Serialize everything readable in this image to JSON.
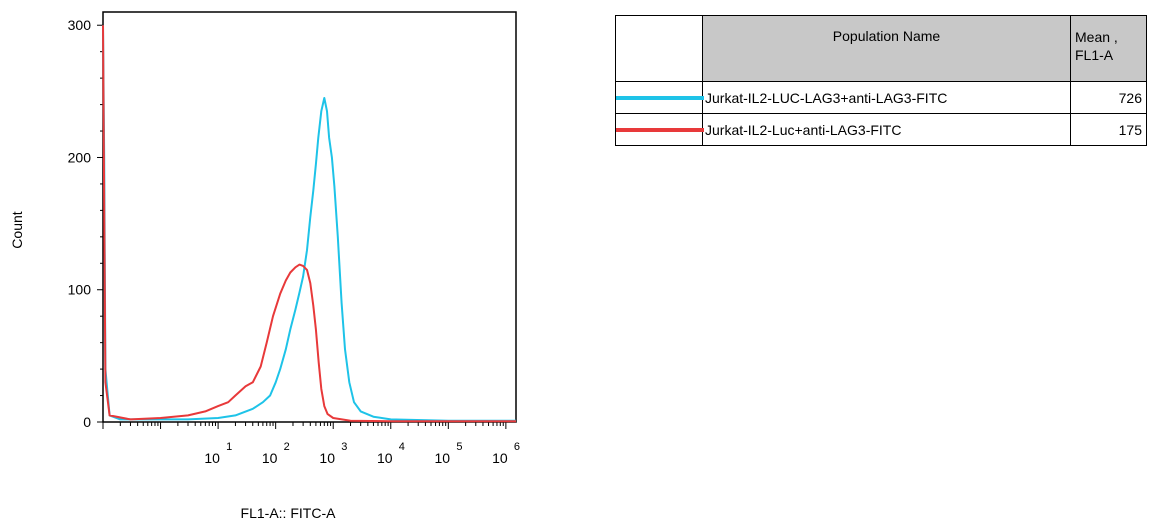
{
  "chart_data": {
    "type": "line",
    "title": "",
    "xlabel": "FL1-A:: FITC-A",
    "ylabel": "Count",
    "xscale": "log",
    "xlim": [
      0.1,
      1500000
    ],
    "ylim": [
      0,
      310
    ],
    "yticks": [
      0,
      100,
      200,
      300
    ],
    "xtick_labels": [
      {
        "base": "10",
        "exp": "1",
        "value": 10
      },
      {
        "base": "10",
        "exp": "2",
        "value": 100
      },
      {
        "base": "10",
        "exp": "3",
        "value": 1000
      },
      {
        "base": "10",
        "exp": "4",
        "value": 10000
      },
      {
        "base": "10",
        "exp": "5",
        "value": 100000
      },
      {
        "base": "10",
        "exp": "6",
        "value": 1000000
      }
    ],
    "grid": false,
    "series": [
      {
        "name": "Jurkat-IL2-LUC-LAG3+anti-LAG3-FITC",
        "color": "#1ec3e8",
        "points": [
          [
            0.1,
            300
          ],
          [
            0.105,
            200
          ],
          [
            0.11,
            40
          ],
          [
            0.13,
            5
          ],
          [
            0.2,
            2
          ],
          [
            1,
            2
          ],
          [
            3,
            2
          ],
          [
            10,
            3
          ],
          [
            20,
            5
          ],
          [
            40,
            10
          ],
          [
            60,
            15
          ],
          [
            80,
            20
          ],
          [
            100,
            30
          ],
          [
            120,
            40
          ],
          [
            150,
            55
          ],
          [
            180,
            70
          ],
          [
            220,
            85
          ],
          [
            260,
            98
          ],
          [
            300,
            110
          ],
          [
            350,
            130
          ],
          [
            400,
            155
          ],
          [
            450,
            175
          ],
          [
            500,
            195
          ],
          [
            550,
            215
          ],
          [
            620,
            235
          ],
          [
            700,
            245
          ],
          [
            780,
            235
          ],
          [
            850,
            215
          ],
          [
            950,
            200
          ],
          [
            1050,
            178
          ],
          [
            1200,
            140
          ],
          [
            1400,
            90
          ],
          [
            1600,
            55
          ],
          [
            1900,
            30
          ],
          [
            2300,
            15
          ],
          [
            3000,
            8
          ],
          [
            5000,
            4
          ],
          [
            10000,
            2
          ],
          [
            100000,
            1
          ],
          [
            1500000,
            1
          ]
        ]
      },
      {
        "name": "Jurkat-IL2-Luc+anti-LAG3-FITC",
        "color": "#e8393a",
        "points": [
          [
            0.1,
            300
          ],
          [
            0.105,
            165
          ],
          [
            0.11,
            30
          ],
          [
            0.13,
            5
          ],
          [
            0.3,
            2
          ],
          [
            1,
            3
          ],
          [
            3,
            5
          ],
          [
            6,
            8
          ],
          [
            10,
            12
          ],
          [
            15,
            15
          ],
          [
            20,
            20
          ],
          [
            30,
            27
          ],
          [
            40,
            30
          ],
          [
            55,
            42
          ],
          [
            70,
            60
          ],
          [
            90,
            80
          ],
          [
            120,
            97
          ],
          [
            150,
            107
          ],
          [
            180,
            113
          ],
          [
            220,
            117
          ],
          [
            260,
            119
          ],
          [
            300,
            118
          ],
          [
            350,
            115
          ],
          [
            400,
            105
          ],
          [
            450,
            88
          ],
          [
            500,
            70
          ],
          [
            560,
            45
          ],
          [
            620,
            25
          ],
          [
            700,
            12
          ],
          [
            800,
            6
          ],
          [
            1000,
            3
          ],
          [
            2000,
            1
          ],
          [
            10000,
            0.5
          ],
          [
            1500000,
            0.5
          ]
        ]
      }
    ]
  },
  "legend_table": {
    "header": {
      "population_name": "Population Name",
      "mean_line1": "Mean ,",
      "mean_line2": "FL1-A"
    },
    "rows": [
      {
        "name": "Jurkat-IL2-LUC-LAG3+anti-LAG3-FITC",
        "mean": "726",
        "color": "#1ec3e8"
      },
      {
        "name": "Jurkat-IL2-Luc+anti-LAG3-FITC",
        "mean": "175",
        "color": "#e8393a"
      }
    ]
  }
}
